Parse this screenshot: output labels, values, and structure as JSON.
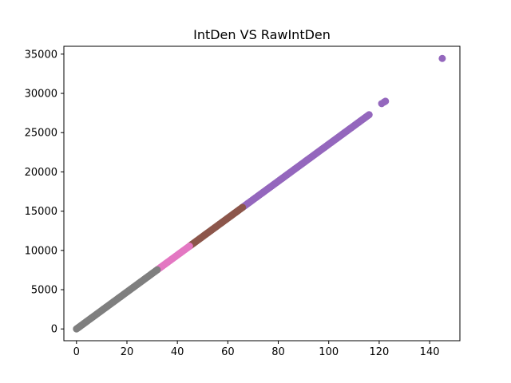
{
  "chart_data": {
    "type": "scatter",
    "title": "IntDen VS RawIntDen",
    "xlabel": "",
    "ylabel": "",
    "xlim": [
      -5,
      152
    ],
    "ylim": [
      -1500,
      36000
    ],
    "xticks": [
      0,
      20,
      40,
      60,
      80,
      100,
      120,
      140
    ],
    "yticks": [
      0,
      5000,
      10000,
      15000,
      20000,
      25000,
      30000,
      35000
    ],
    "grid": false,
    "legend": "none",
    "slope": 235.2,
    "series": [
      {
        "color": "#9467bd",
        "x_range": [
          66,
          116
        ],
        "extra_points": [
          [
            121,
            28700
          ],
          [
            122,
            28900
          ],
          [
            122.5,
            29000
          ],
          [
            145,
            34450
          ]
        ]
      },
      {
        "color": "#8c564b",
        "x_range": [
          45,
          66
        ]
      },
      {
        "color": "#e377c2",
        "x_range": [
          32,
          45
        ]
      },
      {
        "color": "#7f7f7f",
        "x_range": [
          0,
          32
        ]
      }
    ]
  }
}
